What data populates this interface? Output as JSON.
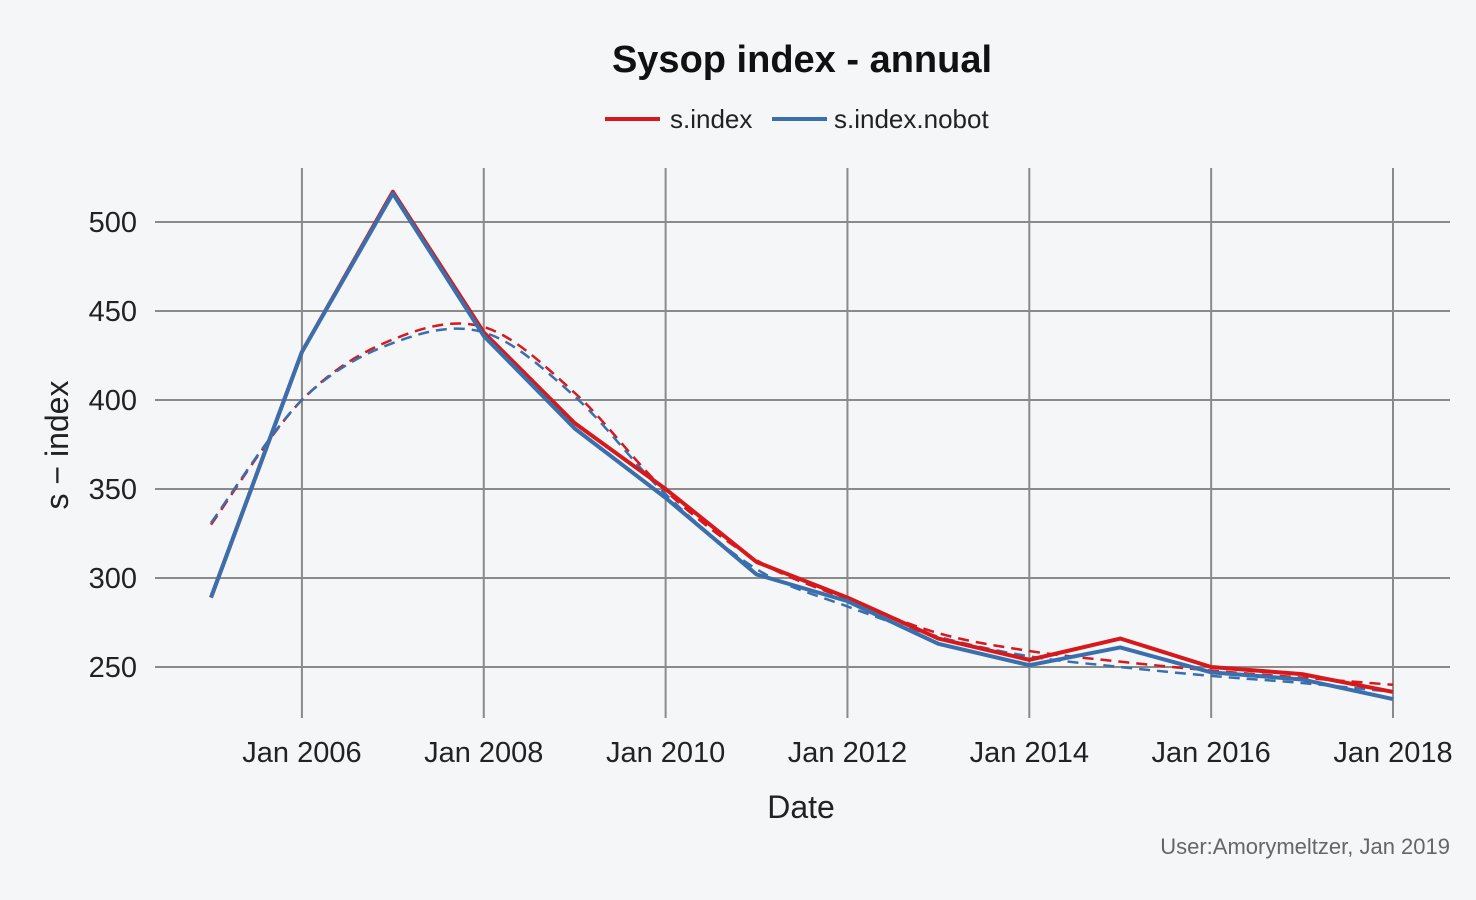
{
  "chart_data": {
    "type": "line",
    "title": "Sysop index - annual",
    "xlabel": "Date",
    "ylabel": "s − index",
    "caption": "User:Amorymeltzer, Jan 2019",
    "legend_position": "top",
    "grid": true,
    "x": [
      2005,
      2006,
      2007,
      2008,
      2009,
      2010,
      2011,
      2012,
      2013,
      2014,
      2015,
      2016,
      2017,
      2018
    ],
    "xlim": [
      2005,
      2018
    ],
    "xticks": [
      2006,
      2008,
      2010,
      2012,
      2014,
      2016,
      2018
    ],
    "xtick_labels": [
      "Jan 2006",
      "Jan 2008",
      "Jan 2010",
      "Jan 2012",
      "Jan 2014",
      "Jan 2016",
      "Jan 2018"
    ],
    "ylim": [
      225,
      528
    ],
    "yticks": [
      250,
      300,
      350,
      400,
      450,
      500
    ],
    "ytick_labels": [
      "250",
      "300",
      "350",
      "400",
      "450",
      "500"
    ],
    "series": [
      {
        "name": "s.index",
        "color": "#d7191c",
        "values": [
          289,
          427,
          517,
          438,
          387,
          350,
          309,
          289,
          266,
          254,
          266,
          250,
          246,
          236
        ],
        "trend": [
          330,
          400,
          434,
          441,
          404,
          349,
          310,
          288,
          269,
          259,
          253,
          248,
          244,
          240
        ]
      },
      {
        "name": "s.index.nobot",
        "color": "#3a6fad",
        "values": [
          289,
          427,
          516,
          436,
          384,
          345,
          302,
          287,
          263,
          251,
          261,
          247,
          243,
          232
        ],
        "trend": [
          331,
          400,
          432,
          438,
          402,
          347,
          305,
          284,
          267,
          256,
          250,
          245,
          241,
          236
        ]
      }
    ]
  }
}
